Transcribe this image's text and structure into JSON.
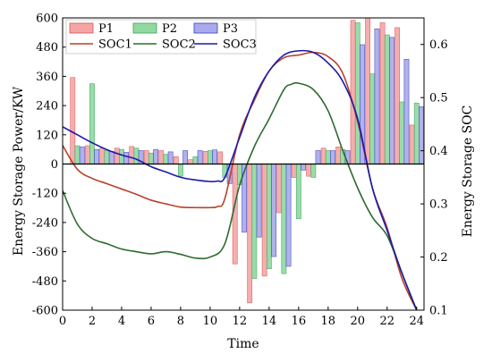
{
  "chart_data": {
    "type": "bar+line",
    "xlabel": "Time",
    "ylabel_left": "Energy Storage Power/KW",
    "ylabel_right": "Energy Storage SOC",
    "xlim": [
      0,
      24.5
    ],
    "ylim_left": [
      -600,
      600
    ],
    "ylim_right": [
      0.1,
      0.65
    ],
    "xticks": [
      "0",
      "2",
      "4",
      "6",
      "8",
      "10",
      "12",
      "14",
      "16",
      "18",
      "20",
      "22",
      "24"
    ],
    "yticks_left": [
      "600",
      "480",
      "360",
      "240",
      "120",
      "0",
      "-120",
      "-240",
      "-360",
      "-480",
      "-600"
    ],
    "yticks_right": [
      "0.6",
      "0.5",
      "0.4",
      "0.3",
      "0.2",
      "0.1"
    ],
    "legend_position": "top-left",
    "zero_line": true,
    "bar_hours": [
      1,
      2,
      3,
      4,
      5,
      6,
      7,
      8,
      9,
      10,
      11,
      12,
      13,
      14,
      15,
      16,
      17,
      18,
      19,
      20,
      21,
      22,
      23,
      24
    ],
    "bar_series": [
      {
        "name": "P1",
        "color": "#f4a6a6",
        "edge": "#d9534f",
        "values": [
          355,
          75,
          65,
          65,
          72,
          55,
          55,
          30,
          18,
          52,
          50,
          -410,
          -570,
          -460,
          -200,
          -55,
          -50,
          65,
          70,
          590,
          620,
          580,
          560,
          160
        ]
      },
      {
        "name": "P2",
        "color": "#90d9a0",
        "edge": "#3aa45a",
        "values": [
          75,
          330,
          55,
          60,
          65,
          45,
          40,
          -50,
          30,
          55,
          -55,
          -85,
          -470,
          -430,
          -450,
          -225,
          -55,
          55,
          60,
          580,
          370,
          530,
          255,
          250
        ]
      },
      {
        "name": "P3",
        "color": "#a8aaeb",
        "edge": "#3b3fc0",
        "values": [
          70,
          60,
          52,
          48,
          55,
          60,
          50,
          55,
          55,
          58,
          -80,
          -280,
          -300,
          -380,
          -420,
          -25,
          55,
          55,
          55,
          490,
          555,
          520,
          430,
          235
        ]
      }
    ],
    "line_series": [
      {
        "name": "SOC1",
        "color": "#b8412b",
        "x": [
          0,
          1,
          2,
          3,
          4,
          5,
          6,
          7,
          8,
          9,
          10,
          10.5,
          11,
          12,
          13,
          14,
          15,
          16,
          17,
          18,
          19,
          20,
          21,
          22,
          23,
          24
        ],
        "y": [
          0.41,
          0.365,
          0.348,
          0.338,
          0.328,
          0.318,
          0.307,
          0.3,
          0.294,
          0.293,
          0.293,
          0.295,
          0.31,
          0.43,
          0.495,
          0.55,
          0.575,
          0.58,
          0.585,
          0.577,
          0.545,
          0.455,
          0.33,
          0.255,
          0.16,
          0.1
        ]
      },
      {
        "name": "SOC2",
        "color": "#2e6b2e",
        "x": [
          0,
          1,
          2,
          3,
          4,
          5,
          6,
          7,
          8,
          9,
          10,
          11,
          12,
          13,
          14,
          15,
          15.5,
          16,
          17,
          18,
          19,
          20,
          21,
          22,
          23,
          24
        ],
        "y": [
          0.325,
          0.262,
          0.235,
          0.225,
          0.215,
          0.21,
          0.206,
          0.21,
          0.205,
          0.198,
          0.2,
          0.225,
          0.335,
          0.408,
          0.46,
          0.515,
          0.525,
          0.527,
          0.515,
          0.475,
          0.4,
          0.33,
          0.275,
          0.24,
          0.17,
          0.1
        ]
      },
      {
        "name": "SOC3",
        "color": "#1a1aa8",
        "x": [
          0,
          1,
          2,
          3,
          4,
          5,
          6,
          7,
          8,
          9,
          10,
          10.5,
          11,
          12,
          13,
          14,
          15,
          16,
          17,
          18,
          19,
          20,
          21,
          22,
          23,
          24
        ],
        "y": [
          0.445,
          0.43,
          0.415,
          0.402,
          0.392,
          0.384,
          0.37,
          0.36,
          0.35,
          0.345,
          0.342,
          0.343,
          0.35,
          0.425,
          0.5,
          0.55,
          0.58,
          0.588,
          0.585,
          0.565,
          0.53,
          0.46,
          0.33,
          0.25,
          0.17,
          0.1
        ]
      }
    ]
  }
}
